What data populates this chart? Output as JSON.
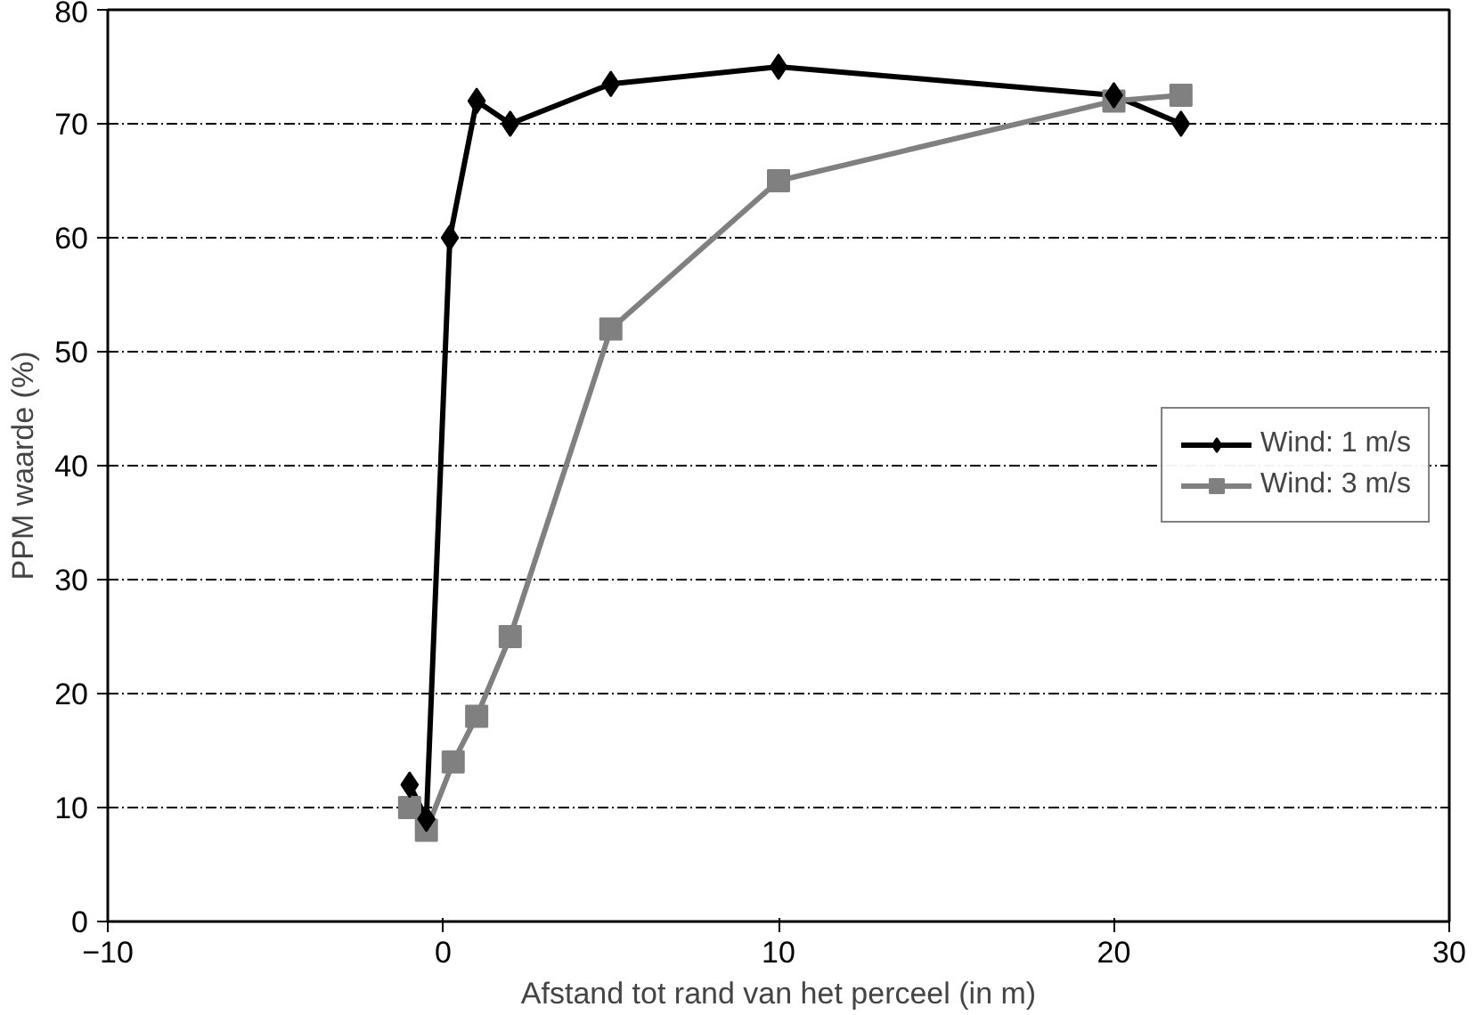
{
  "chart_data": {
    "type": "line",
    "xlabel": "Afstand tot rand van het perceel (in m)",
    "ylabel": "PPM waarde (%)",
    "xlim": [
      -10,
      30
    ],
    "xticks": [
      -10,
      0,
      10,
      20,
      30
    ],
    "ylim": [
      0,
      80
    ],
    "yticks": [
      0,
      10,
      20,
      30,
      40,
      50,
      60,
      70,
      80
    ],
    "grid": "y",
    "legend": "right",
    "series": [
      {
        "name": "Wind: 1 m/s",
        "color": "#000000",
        "marker": "diamond",
        "x": [
          -1,
          -0.5,
          0.2,
          1,
          2,
          5,
          10,
          20,
          22
        ],
        "values": [
          12,
          9,
          60,
          72,
          70,
          73.5,
          75,
          72.5,
          70
        ]
      },
      {
        "name": "Wind: 3 m/s",
        "color": "#808080",
        "marker": "square",
        "x": [
          -1,
          -0.5,
          0.3,
          1,
          2,
          5,
          10,
          20,
          22
        ],
        "values": [
          10,
          8,
          14,
          18,
          25,
          52,
          65,
          72,
          72.5
        ]
      }
    ]
  }
}
